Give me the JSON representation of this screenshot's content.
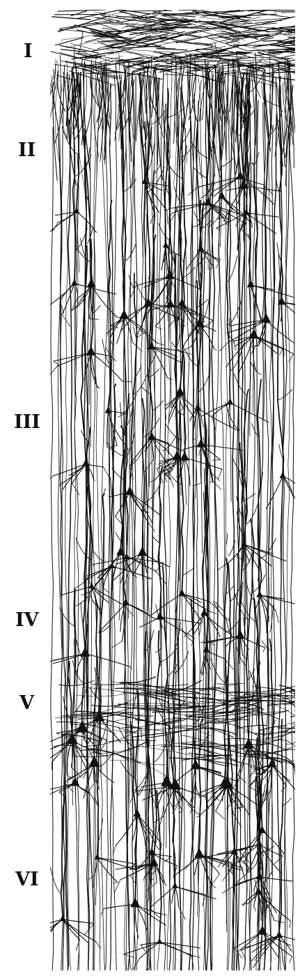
{
  "figure": {
    "layers": [
      {
        "id": "I",
        "label": "I"
      },
      {
        "id": "II",
        "label": "II"
      },
      {
        "id": "III",
        "label": "III"
      },
      {
        "id": "IV",
        "label": "IV"
      },
      {
        "id": "V",
        "label": "V"
      },
      {
        "id": "VI",
        "label": "VI"
      }
    ]
  },
  "colors": {
    "ink": "#111111",
    "background": "#ffffff"
  }
}
